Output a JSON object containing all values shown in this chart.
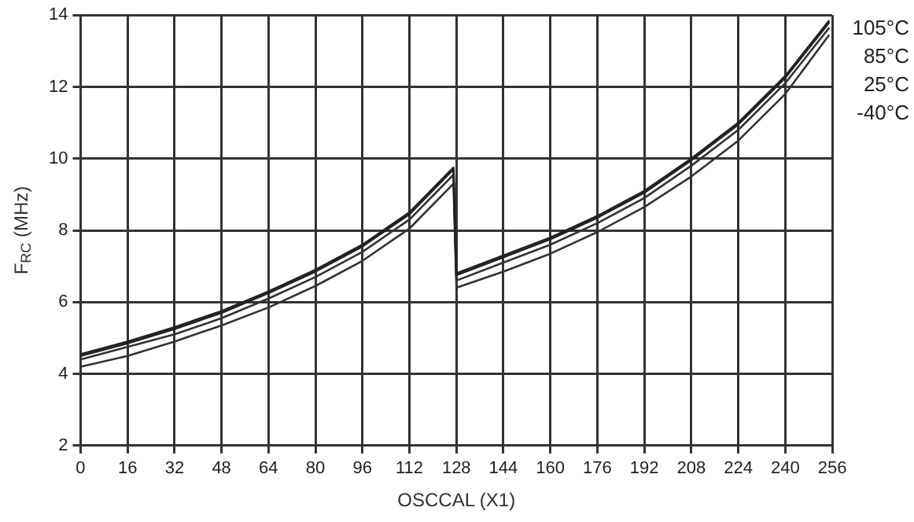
{
  "chart_data": {
    "type": "line",
    "xlabel": "OSCCAL (X1)",
    "ylabel": "F$_{RC}$ (MHz)",
    "xlim": [
      0,
      256
    ],
    "xticks": [
      0,
      16,
      32,
      48,
      64,
      80,
      96,
      112,
      128,
      144,
      160,
      176,
      192,
      208,
      224,
      240,
      256
    ],
    "ylim": [
      2,
      14
    ],
    "yticks": [
      2,
      4,
      6,
      8,
      10,
      12,
      14
    ],
    "grid": true,
    "legend": "right",
    "marker": "none",
    "line_style": "solid",
    "series": [
      {
        "name": "105°C",
        "color": "#222222",
        "x": [
          0,
          16,
          32,
          48,
          64,
          80,
          96,
          112,
          127,
          128,
          144,
          160,
          176,
          192,
          208,
          224,
          240,
          255
        ],
        "values": [
          4.55,
          4.9,
          5.3,
          5.75,
          6.3,
          6.9,
          7.6,
          8.5,
          9.75,
          6.8,
          7.3,
          7.8,
          8.4,
          9.1,
          10.0,
          11.0,
          12.3,
          13.85
        ]
      },
      {
        "name": "85°C",
        "color": "#222222",
        "x": [
          0,
          16,
          32,
          48,
          64,
          80,
          96,
          112,
          127,
          128,
          144,
          160,
          176,
          192,
          208,
          224,
          240,
          255
        ],
        "values": [
          4.5,
          4.85,
          5.25,
          5.7,
          6.25,
          6.85,
          7.55,
          8.45,
          9.7,
          6.75,
          7.25,
          7.75,
          8.35,
          9.05,
          9.95,
          10.95,
          12.25,
          13.8
        ]
      },
      {
        "name": "25°C",
        "color": "#333333",
        "x": [
          0,
          16,
          32,
          48,
          64,
          80,
          96,
          112,
          127,
          128,
          144,
          160,
          176,
          192,
          208,
          224,
          240,
          255
        ],
        "values": [
          4.4,
          4.75,
          5.1,
          5.55,
          6.1,
          6.7,
          7.4,
          8.3,
          9.55,
          6.6,
          7.1,
          7.6,
          8.2,
          8.9,
          9.8,
          10.8,
          12.1,
          13.65
        ]
      },
      {
        "name": "-40°C",
        "color": "#333333",
        "x": [
          0,
          16,
          32,
          48,
          64,
          80,
          96,
          112,
          127,
          128,
          144,
          160,
          176,
          192,
          208,
          224,
          240,
          255
        ],
        "values": [
          4.2,
          4.5,
          4.9,
          5.35,
          5.85,
          6.45,
          7.15,
          8.05,
          9.3,
          6.4,
          6.85,
          7.35,
          7.95,
          8.65,
          9.5,
          10.5,
          11.8,
          13.45
        ]
      }
    ]
  }
}
